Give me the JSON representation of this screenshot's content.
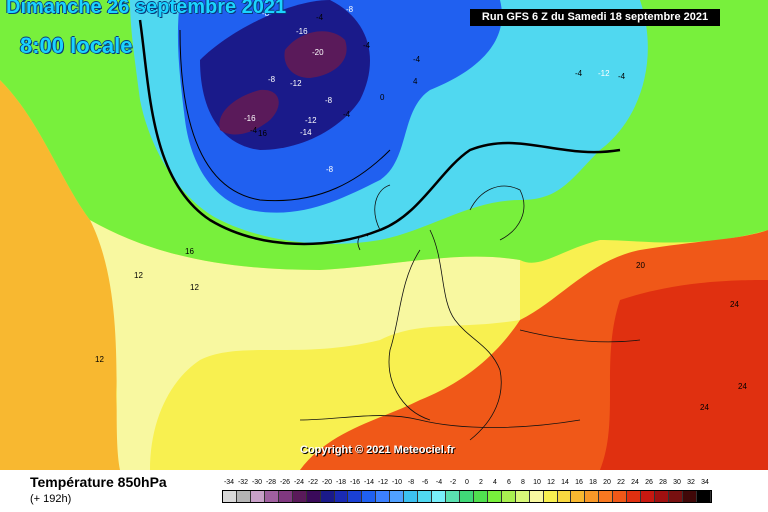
{
  "header": {
    "date_title": "Dimanche 26 septembre 2021",
    "time_title": "8:00 locale",
    "run_info": "Run GFS 6 Z du Samedi 18 septembre 2021"
  },
  "copyright": "Copyright © 2021 Meteociel.fr",
  "footer": {
    "variable_title": "Température 850hPa",
    "forecast_hours": "(+ 192h)"
  },
  "scale": {
    "labels": [
      "-34",
      "-32",
      "-30",
      "-28",
      "-26",
      "-24",
      "-22",
      "-20",
      "-18",
      "-16",
      "-14",
      "-12",
      "-10",
      "-8",
      "-6",
      "-4",
      "-2",
      "0",
      "2",
      "4",
      "6",
      "8",
      "10",
      "12",
      "14",
      "16",
      "18",
      "20",
      "22",
      "24",
      "26",
      "28",
      "30",
      "32",
      "34"
    ],
    "colors": [
      "#d8d8d8",
      "#b4b4b4",
      "#c8a0c8",
      "#a060a0",
      "#803880",
      "#5a1a5a",
      "#3a0a5a",
      "#1a1a8a",
      "#1a2ab4",
      "#1a40d4",
      "#2060f0",
      "#3c80ff",
      "#50a0ff",
      "#3cc0f0",
      "#50d8f0",
      "#78eefa",
      "#5ae0b0",
      "#40d878",
      "#50e050",
      "#78f03c",
      "#a8f050",
      "#d8f878",
      "#f8f8a0",
      "#f8f050",
      "#f8d840",
      "#f8b830",
      "#f89828",
      "#f87820",
      "#f05818",
      "#e03010",
      "#c81810",
      "#a01010",
      "#781010",
      "#400808",
      "#000000"
    ]
  },
  "map": {
    "colors": {
      "warm_sw": "#f8b830",
      "mid_yellow": "#f8f8a0",
      "green": "#78f03c",
      "cyan": "#50d8f0",
      "blue": "#2060f0",
      "deep_blue": "#1a1a8a",
      "purple": "#5a1a5a",
      "hot_se": "#f05818",
      "very_hot": "#e03010"
    },
    "labels": [
      "-8",
      "-16",
      "-20",
      "-4",
      "-8",
      "-12",
      "-16",
      "-4",
      "-4",
      "-4",
      "-4",
      "-12",
      "-4",
      "-12",
      "-14",
      "-8",
      "-8",
      "-4",
      "-8",
      "0",
      "4",
      "12",
      "12",
      "16",
      "20",
      "24",
      "24",
      "24",
      "12",
      "16"
    ]
  }
}
